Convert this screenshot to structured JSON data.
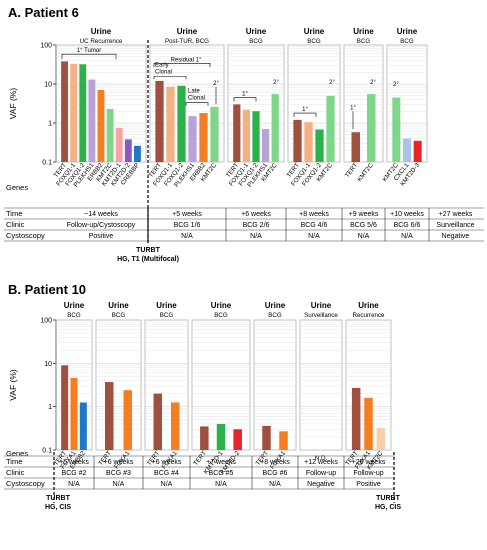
{
  "colors": {
    "brown": "#A0503F",
    "peach": "#F4B183",
    "green": "#2DB14A",
    "lavender": "#B9A3D6",
    "orange": "#F47E20",
    "lightgreen": "#7ED68A",
    "salmon": "#F7A3A3",
    "purple": "#8B58C4",
    "blue": "#1F77C9",
    "red": "#E52528",
    "lightblue": "#A9C3EA",
    "lightpeach": "#F9CFA8"
  },
  "chart_data": [
    {
      "type": "bar",
      "title": "A. Patient 6",
      "ylabel": "VAF (%)",
      "yscale": "log",
      "ylim": [
        0.1,
        100
      ],
      "yticks": [
        "100",
        "10",
        "1",
        "0.1"
      ],
      "row_labels": {
        "genes": "Genes",
        "time": "Time",
        "clinic": "Clinic",
        "cystoscopy": "Cystoscopy"
      },
      "groups": [
        {
          "header": "Urine",
          "sub": "UC Recurrence",
          "time": "~14 weeks",
          "clinic": "Follow-up/Cystoscopy",
          "cystoscopy": "Positive",
          "bars": [
            {
              "gene": "TERT",
              "value": 38,
              "color": "brown"
            },
            {
              "gene": "FOXQ1-1",
              "value": 33,
              "color": "peach"
            },
            {
              "gene": "FOXQ1-2",
              "value": 32,
              "color": "green"
            },
            {
              "gene": "PLEKHS1",
              "value": 13,
              "color": "lavender"
            },
            {
              "gene": "ERBB2",
              "value": 7,
              "color": "orange"
            },
            {
              "gene": "KMT2C",
              "value": 2.3,
              "color": "lightgreen"
            },
            {
              "gene": "KMT2D-1",
              "value": 0.75,
              "color": "salmon"
            },
            {
              "gene": "KMT2D-2",
              "value": 0.38,
              "color": "purple"
            },
            {
              "gene": "CREBBP",
              "value": 0.26,
              "color": "blue"
            }
          ]
        },
        {
          "header": "Urine",
          "sub": "Post-TUR, BCG",
          "time": "+5 weeks",
          "clinic": "BCG 1/6",
          "cystoscopy": "N/A",
          "bars": [
            {
              "gene": "TERT",
              "value": 12,
              "color": "brown"
            },
            {
              "gene": "FOXQ1-1",
              "value": 8.5,
              "color": "peach"
            },
            {
              "gene": "FOXQ1-2",
              "value": 9,
              "color": "green"
            },
            {
              "gene": "PLEKHS1",
              "value": 1.5,
              "color": "lavender"
            },
            {
              "gene": "ERBB2",
              "value": 1.8,
              "color": "orange"
            },
            {
              "gene": "KMT2C",
              "value": 2.6,
              "color": "lightgreen"
            }
          ]
        },
        {
          "header": "Urine",
          "sub": "BCG",
          "time": "+6 weeks",
          "clinic": "BCG 2/6",
          "cystoscopy": "N/A",
          "bars": [
            {
              "gene": "TERT",
              "value": 3.0,
              "color": "brown"
            },
            {
              "gene": "FOXQ1-1",
              "value": 2.2,
              "color": "peach"
            },
            {
              "gene": "FOXQ1-2",
              "value": 2.0,
              "color": "green"
            },
            {
              "gene": "PLEKHS1",
              "value": 0.7,
              "color": "lavender"
            },
            {
              "gene": "KMT2C",
              "value": 5.5,
              "color": "lightgreen"
            }
          ]
        },
        {
          "header": "Urine",
          "sub": "BCG",
          "time": "+8 weeks",
          "clinic": "BCG 4/6",
          "cystoscopy": "N/A",
          "bars": [
            {
              "gene": "TERT",
              "value": 1.2,
              "color": "brown"
            },
            {
              "gene": "FOXQ1-1",
              "value": 1.05,
              "color": "peach"
            },
            {
              "gene": "FOXQ1-2",
              "value": 0.68,
              "color": "green"
            },
            {
              "gene": "KMT2C",
              "value": 5.0,
              "color": "lightgreen"
            }
          ]
        },
        {
          "header": "Urine",
          "sub": "BCG",
          "time": "+9 weeks",
          "clinic": "BCG 5/6",
          "cystoscopy": "N/A",
          "bars": [
            {
              "gene": "TERT",
              "value": 0.58,
              "color": "brown"
            },
            {
              "gene": "KMT2C",
              "value": 5.5,
              "color": "lightgreen"
            }
          ]
        },
        {
          "header": "Urine",
          "sub": "BCG",
          "time": "+10 weeks",
          "clinic": "BCG 6/6",
          "cystoscopy": "N/A",
          "bars": [
            {
              "gene": "KMT2C",
              "value": 4.5,
              "color": "lightgreen"
            },
            {
              "gene": "CXCL1",
              "value": 0.4,
              "color": "lightblue"
            },
            {
              "gene": "KMT2D-3",
              "value": 0.35,
              "color": "red"
            }
          ]
        },
        {
          "header": "",
          "sub": "",
          "time": "+27 weeks",
          "clinic": "Surveillance",
          "cystoscopy": "Negative",
          "bars": []
        }
      ],
      "annotations": {
        "first_tumor": "1° Tumor",
        "residual": "Residual 1°",
        "early_clonal": "Early Clonal",
        "late_clonal": "Late Clonal",
        "primary": "1°",
        "secondary": "2°"
      },
      "turbt": [
        "TURBT",
        "HG, T1 (Multifocal)"
      ]
    },
    {
      "type": "bar",
      "title": "B. Patient 10",
      "ylabel": "VAF (%)",
      "yscale": "log",
      "ylim": [
        0.1,
        100
      ],
      "yticks": [
        "100",
        "10",
        "1",
        "0.1"
      ],
      "row_labels": {
        "genes": "Genes",
        "time": "Time",
        "clinic": "Clinic",
        "cystoscopy": "Cystoscopy"
      },
      "groups": [
        {
          "header": "Urine",
          "sub": "BCG",
          "time": "+5 weeks",
          "clinic": "BCG #2",
          "cystoscopy": "N/A",
          "bars": [
            {
              "gene": "TERT",
              "value": 9,
              "color": "brown"
            },
            {
              "gene": "FOXA1",
              "value": 4.6,
              "color": "orange"
            },
            {
              "gene": "ERBB2",
              "value": 1.25,
              "color": "blue"
            }
          ]
        },
        {
          "header": "Urine",
          "sub": "BCG",
          "time": "+6 weeks",
          "clinic": "BCG #3",
          "cystoscopy": "N/A",
          "bars": [
            {
              "gene": "TERT",
              "value": 3.7,
              "color": "brown"
            },
            {
              "gene": "FOXA1",
              "value": 2.4,
              "color": "orange"
            }
          ]
        },
        {
          "header": "Urine",
          "sub": "BCG",
          "time": "+6 weeks",
          "clinic": "BCG #4",
          "cystoscopy": "N/A",
          "bars": [
            {
              "gene": "TERT",
              "value": 2.0,
              "color": "brown"
            },
            {
              "gene": "FOXA1",
              "value": 1.25,
              "color": "orange"
            }
          ]
        },
        {
          "header": "Urine",
          "sub": "BCG",
          "time": "+7 weeks",
          "clinic": "BCG #5",
          "cystoscopy": "N/A",
          "bars": [
            {
              "gene": "TERT",
              "value": 0.35,
              "color": "brown"
            },
            {
              "gene": "KMT2D-1",
              "value": 0.4,
              "color": "green"
            },
            {
              "gene": "KMT2D-2",
              "value": 0.3,
              "color": "red"
            }
          ]
        },
        {
          "header": "Urine",
          "sub": "BCG",
          "time": "+8 weeks",
          "clinic": "BCG #6",
          "cystoscopy": "N/A",
          "bars": [
            {
              "gene": "TERT",
              "value": 0.36,
              "color": "brown"
            },
            {
              "gene": "FOXA1",
              "value": 0.27,
              "color": "orange"
            }
          ]
        },
        {
          "header": "Urine",
          "sub": "Surveillance",
          "time": "+12 weeks",
          "clinic": "Follow-up",
          "cystoscopy": "Negative",
          "bars": [],
          "note": "N.D."
        },
        {
          "header": "Urine",
          "sub": "Recurrence",
          "time": "+26 weeks",
          "clinic": "Follow-up",
          "cystoscopy": "Positive",
          "bars": [
            {
              "gene": "TERT",
              "value": 2.7,
              "color": "brown"
            },
            {
              "gene": "FOXA1",
              "value": 1.6,
              "color": "orange"
            },
            {
              "gene": "KMT2C",
              "value": 0.32,
              "color": "lightpeach"
            }
          ]
        }
      ],
      "turbt_left": [
        "TURBT",
        "HG, CIS"
      ],
      "turbt_right": [
        "TURBT",
        "HG, CIS"
      ]
    }
  ]
}
